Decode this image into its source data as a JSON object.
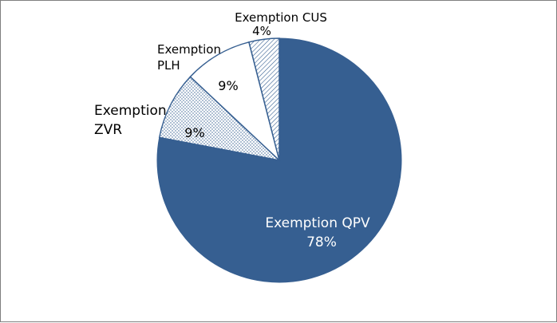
{
  "chart_data": {
    "type": "pie",
    "title": "",
    "slices": [
      {
        "label_lines": [
          "Exemption QPV"
        ],
        "value": 78,
        "value_label": "78%",
        "color": "#365f91",
        "fill": "solid"
      },
      {
        "label_lines": [
          "Exemption",
          "ZVR"
        ],
        "value": 9,
        "value_label": "9%",
        "color": "#ffffff",
        "fill": "dots"
      },
      {
        "label_lines": [
          "Exemption",
          "PLH"
        ],
        "value": 9,
        "value_label": "9%",
        "color": "#ffffff",
        "fill": "solid"
      },
      {
        "label_lines": [
          "Exemption CUS"
        ],
        "value": 4,
        "value_label": "4%",
        "color": "#ffffff",
        "fill": "hatch"
      }
    ],
    "slice_order": "counterclockwise from 12 o'clock",
    "edge_color": "#365f91",
    "legend": "none"
  }
}
